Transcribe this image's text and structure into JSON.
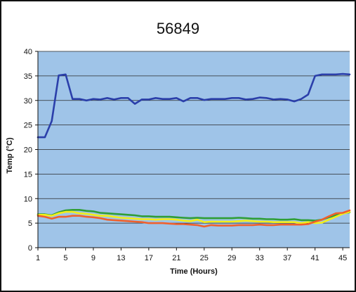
{
  "chart_data": {
    "type": "line",
    "title": "56849",
    "xlabel": "Time (Hours)",
    "ylabel": "Temp (°C)",
    "ylim": [
      0,
      40
    ],
    "xlim": [
      1,
      46
    ],
    "yticks": [
      "0",
      "5",
      "10",
      "15",
      "20",
      "25",
      "30",
      "35",
      "40"
    ],
    "xticks": [
      "1",
      "5",
      "9",
      "13",
      "17",
      "21",
      "25",
      "29",
      "33",
      "37",
      "41",
      "45"
    ],
    "grid": true,
    "legend": "none",
    "plot_background": "#9fc4e8",
    "x": [
      1,
      2,
      3,
      4,
      5,
      6,
      7,
      8,
      9,
      10,
      11,
      12,
      13,
      14,
      15,
      16,
      17,
      18,
      19,
      20,
      21,
      22,
      23,
      24,
      25,
      26,
      27,
      28,
      29,
      30,
      31,
      32,
      33,
      34,
      35,
      36,
      37,
      38,
      39,
      40,
      41,
      42,
      43,
      44,
      45,
      46
    ],
    "series": [
      {
        "color": "#2b3faa",
        "values": [
          22.5,
          22.5,
          25.8,
          35.1,
          35.3,
          30.3,
          30.3,
          30.0,
          30.3,
          30.2,
          30.5,
          30.2,
          30.5,
          30.5,
          29.3,
          30.2,
          30.2,
          30.5,
          30.3,
          30.3,
          30.5,
          29.8,
          30.5,
          30.5,
          30.1,
          30.3,
          30.3,
          30.3,
          30.5,
          30.5,
          30.2,
          30.3,
          30.6,
          30.5,
          30.2,
          30.3,
          30.2,
          29.8,
          30.3,
          31.2,
          35.0,
          35.3,
          35.3,
          35.3,
          35.4,
          35.3
        ]
      },
      {
        "color": "#2f9e35",
        "values": [
          6.8,
          6.8,
          6.6,
          7.2,
          7.6,
          7.7,
          7.7,
          7.5,
          7.4,
          7.1,
          7.0,
          6.9,
          6.8,
          6.7,
          6.6,
          6.4,
          6.4,
          6.3,
          6.3,
          6.3,
          6.2,
          6.1,
          6.0,
          6.1,
          6.0,
          6.0,
          6.0,
          6.0,
          6.0,
          6.1,
          6.0,
          5.9,
          5.9,
          5.8,
          5.8,
          5.7,
          5.7,
          5.8,
          5.6,
          5.6,
          5.5,
          5.7,
          6.2,
          6.6,
          7.0,
          7.2
        ]
      },
      {
        "color": "#f2ee18",
        "values": [
          6.7,
          6.7,
          6.5,
          7.0,
          7.3,
          7.3,
          7.0,
          6.9,
          6.7,
          6.5,
          6.5,
          6.3,
          6.1,
          6.0,
          5.9,
          5.8,
          5.8,
          5.7,
          5.8,
          5.8,
          5.7,
          5.5,
          5.4,
          5.7,
          5.2,
          5.3,
          5.3,
          5.3,
          5.3,
          5.4,
          5.5,
          5.4,
          5.3,
          5.3,
          5.2,
          5.2,
          5.2,
          5.2,
          5.0,
          5.2,
          5.0,
          5.1,
          5.7,
          6.3,
          6.9,
          7.3
        ]
      },
      {
        "color": "#f0602c",
        "values": [
          6.5,
          6.3,
          5.9,
          6.3,
          6.3,
          6.5,
          6.5,
          6.3,
          6.2,
          6.0,
          5.7,
          5.6,
          5.5,
          5.4,
          5.3,
          5.2,
          5.0,
          5.0,
          5.0,
          4.9,
          4.8,
          4.8,
          4.7,
          4.6,
          4.3,
          4.6,
          4.5,
          4.5,
          4.5,
          4.6,
          4.6,
          4.6,
          4.7,
          4.6,
          4.6,
          4.7,
          4.7,
          4.7,
          4.7,
          4.8,
          5.3,
          5.7,
          6.4,
          7.0,
          7.1,
          7.6
        ]
      }
    ]
  }
}
